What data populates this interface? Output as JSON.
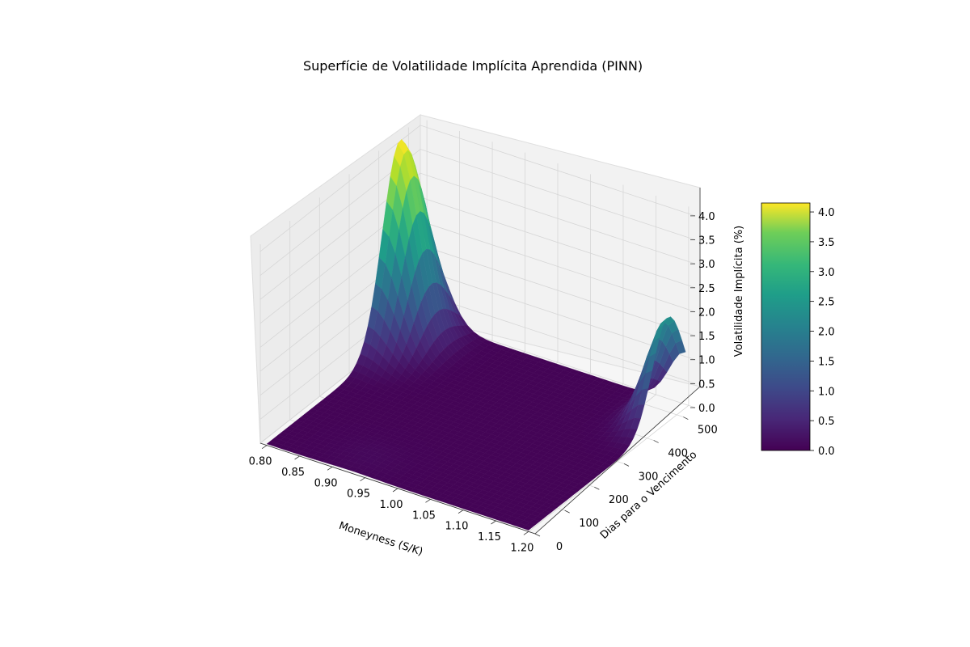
{
  "chart_data": {
    "type": "surface3d",
    "title": "Superfície de Volatilidade Implícita Aprendida (PINN)",
    "xlabel": "Moneyness (S/K)",
    "ylabel": "Dias para o Vencimento",
    "zlabel": "Volatilidade Implícita (%)",
    "xlim": [
      0.79,
      1.21
    ],
    "ylim": [
      0,
      540
    ],
    "zlim": [
      0,
      4.15
    ],
    "x_ticks": [
      0.8,
      0.85,
      0.9,
      0.95,
      1.0,
      1.05,
      1.1,
      1.15,
      1.2
    ],
    "x_tick_labels": [
      "0.80",
      "0.85",
      "0.90",
      "0.95",
      "1.00",
      "1.05",
      "1.10",
      "1.15",
      "1.20"
    ],
    "y_ticks": [
      0,
      100,
      200,
      300,
      400,
      500
    ],
    "y_tick_labels": [
      "0",
      "100",
      "200",
      "300",
      "400",
      "500"
    ],
    "z_ticks": [
      0.0,
      0.5,
      1.0,
      1.5,
      2.0,
      2.5,
      3.0,
      3.5,
      4.0
    ],
    "z_tick_labels": [
      "0.0",
      "0.5",
      "1.0",
      "1.5",
      "2.0",
      "2.5",
      "3.0",
      "3.5",
      "4.0"
    ],
    "colormap": "viridis",
    "colorbar": {
      "range": [
        0.0,
        4.15
      ],
      "ticks": [
        0.0,
        0.5,
        1.0,
        1.5,
        2.0,
        2.5,
        3.0,
        3.5,
        4.0
      ],
      "tick_labels": [
        "0.0",
        "0.5",
        "1.0",
        "1.5",
        "2.0",
        "2.5",
        "3.0",
        "3.5",
        "4.0"
      ]
    },
    "peaks": [
      {
        "moneyness": 0.8,
        "days": 450,
        "volatility": 4.15
      },
      {
        "moneyness": 1.2,
        "days": 470,
        "volatility": 2.15
      }
    ],
    "grid": true
  }
}
